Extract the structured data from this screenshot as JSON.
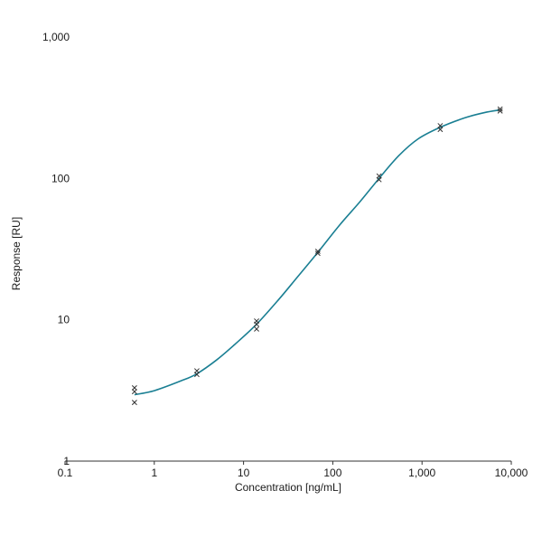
{
  "chart_data": {
    "type": "scatter",
    "title": "",
    "xlabel": "Concentration [ng/mL]",
    "ylabel": "Response [RU]",
    "x_scale": "log",
    "y_scale": "log",
    "xlim": [
      0.1,
      10000
    ],
    "ylim": [
      1,
      1000
    ],
    "x_ticks": [
      {
        "value": 0.1,
        "label": "0.1"
      },
      {
        "value": 1,
        "label": "1"
      },
      {
        "value": 10,
        "label": "10"
      },
      {
        "value": 100,
        "label": "100"
      },
      {
        "value": 1000,
        "label": "1,000"
      },
      {
        "value": 10000,
        "label": "10,000"
      }
    ],
    "y_ticks": [
      {
        "value": 1,
        "label": "1"
      },
      {
        "value": 10,
        "label": "10"
      },
      {
        "value": 100,
        "label": "100"
      },
      {
        "value": 1000,
        "label": "1,000"
      }
    ],
    "grid": false,
    "legend": "none",
    "marker": "x",
    "colors": {
      "curve": "#1a7f93",
      "marker": "#333333",
      "axis": "#333333"
    },
    "series": [
      {
        "points": [
          {
            "x": 0.6,
            "y": 3.3
          },
          {
            "x": 0.6,
            "y": 3.1
          },
          {
            "x": 0.6,
            "y": 2.6
          },
          {
            "x": 3.0,
            "y": 4.35
          },
          {
            "x": 3.0,
            "y": 4.1
          },
          {
            "x": 14,
            "y": 9.8
          },
          {
            "x": 14,
            "y": 9.3
          },
          {
            "x": 14,
            "y": 8.6
          },
          {
            "x": 68,
            "y": 29.5
          },
          {
            "x": 68,
            "y": 30.5
          },
          {
            "x": 330,
            "y": 104
          },
          {
            "x": 330,
            "y": 98
          },
          {
            "x": 1600,
            "y": 236
          },
          {
            "x": 1600,
            "y": 222
          },
          {
            "x": 7500,
            "y": 310
          },
          {
            "x": 7500,
            "y": 300
          }
        ],
        "fit_curve": [
          {
            "x": 0.6,
            "y": 2.95
          },
          {
            "x": 1,
            "y": 3.15
          },
          {
            "x": 2,
            "y": 3.7
          },
          {
            "x": 3,
            "y": 4.15
          },
          {
            "x": 5,
            "y": 5.2
          },
          {
            "x": 8,
            "y": 6.7
          },
          {
            "x": 14,
            "y": 9.3
          },
          {
            "x": 25,
            "y": 14
          },
          {
            "x": 40,
            "y": 20
          },
          {
            "x": 68,
            "y": 30
          },
          {
            "x": 120,
            "y": 47
          },
          {
            "x": 200,
            "y": 68
          },
          {
            "x": 330,
            "y": 100
          },
          {
            "x": 550,
            "y": 145
          },
          {
            "x": 900,
            "y": 190
          },
          {
            "x": 1600,
            "y": 230
          },
          {
            "x": 3000,
            "y": 268
          },
          {
            "x": 5000,
            "y": 292
          },
          {
            "x": 7500,
            "y": 305
          }
        ]
      }
    ]
  }
}
